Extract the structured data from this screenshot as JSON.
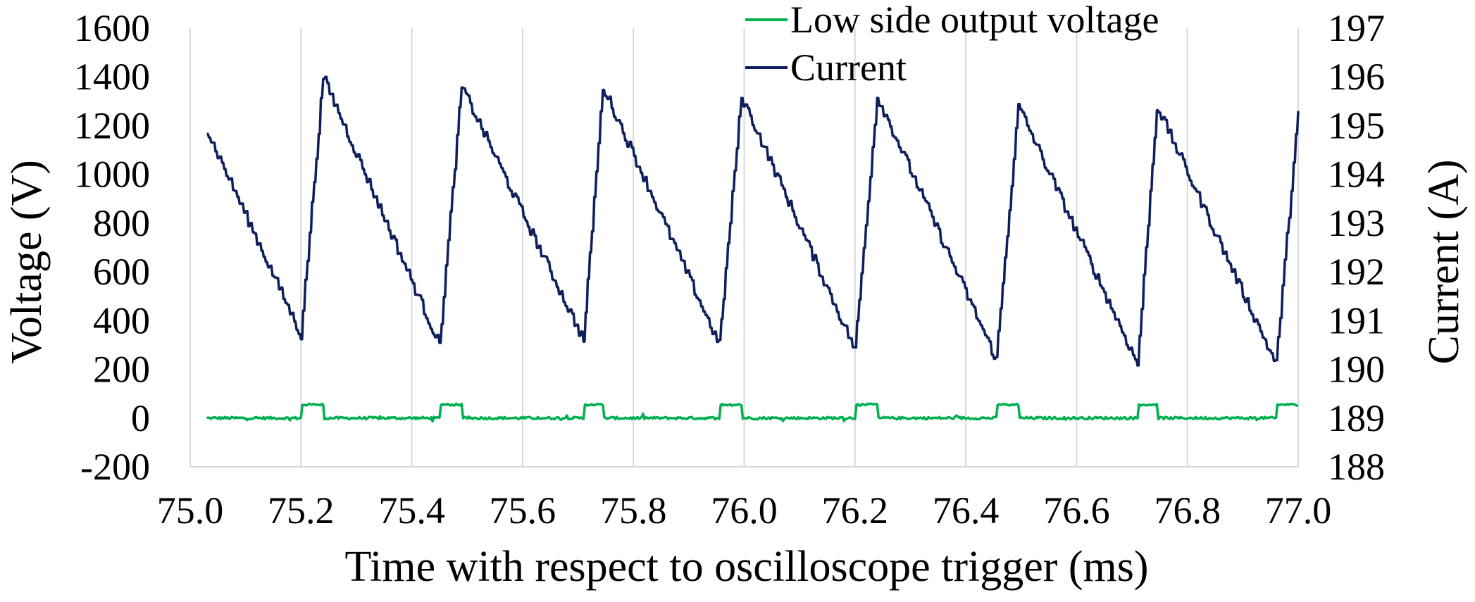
{
  "chart_data": {
    "type": "line",
    "title": "",
    "xlabel": "Time with respect to oscilloscope trigger (ms)",
    "ylabel": "Voltage (V)",
    "y2label": "Current (A)",
    "xlim": [
      75.0,
      77.0
    ],
    "ylim": [
      -200,
      1600
    ],
    "y2lim": [
      188,
      197
    ],
    "xticks": [
      "75.0",
      "75.2",
      "75.4",
      "75.6",
      "75.8",
      "76.0",
      "76.2",
      "76.4",
      "76.6",
      "76.8",
      "77.0"
    ],
    "yticks": [
      "-200",
      "0",
      "200",
      "400",
      "600",
      "800",
      "1000",
      "1200",
      "1400",
      "1600"
    ],
    "y2ticks": [
      "188",
      "189",
      "190",
      "191",
      "192",
      "193",
      "194",
      "195",
      "196",
      "197"
    ],
    "grid": "vertical",
    "legend_position": "top-center",
    "series": [
      {
        "name": "Low side output voltage",
        "axis": "left",
        "color": "#00b050",
        "pulses": [
          {
            "start": 75.2,
            "end": 75.24,
            "high": 55
          },
          {
            "start": 75.45,
            "end": 75.49,
            "high": 55
          },
          {
            "start": 75.71,
            "end": 75.745,
            "high": 55
          },
          {
            "start": 75.955,
            "end": 75.995,
            "high": 55
          },
          {
            "start": 76.2,
            "end": 76.24,
            "high": 55
          },
          {
            "start": 76.455,
            "end": 76.495,
            "high": 55
          },
          {
            "start": 76.71,
            "end": 76.745,
            "high": 55
          },
          {
            "start": 76.96,
            "end": 77.0,
            "high": 55
          }
        ],
        "low_level": 0
      },
      {
        "name": "Current",
        "axis": "right",
        "color": "#0f1f5c",
        "x": [
          75.03,
          75.2,
          75.24,
          75.45,
          75.49,
          75.71,
          75.745,
          75.955,
          75.995,
          76.2,
          76.24,
          76.455,
          76.495,
          76.71,
          76.745,
          76.96,
          77.0
        ],
        "y": [
          194.9,
          190.7,
          196.0,
          190.5,
          195.8,
          190.6,
          195.8,
          190.5,
          195.6,
          190.4,
          195.6,
          190.2,
          195.4,
          190.1,
          195.4,
          190.1,
          195.3
        ]
      }
    ]
  }
}
